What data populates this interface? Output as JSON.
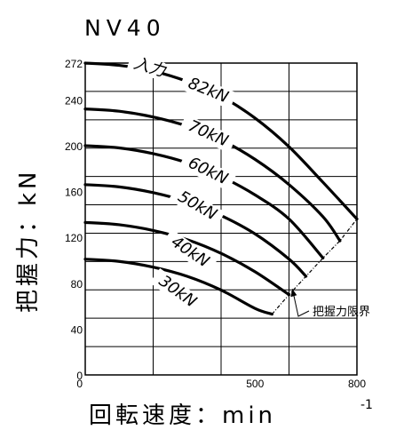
{
  "chart_data": {
    "type": "line",
    "title": "NV40",
    "xlabel": "回転速度：min",
    "xlabel_sup": "-1",
    "ylabel": "把握力：kN",
    "xlim": [
      0,
      800
    ],
    "ylim": [
      0,
      272
    ],
    "x_ticks": [
      {
        "label": "0",
        "value": 0
      },
      {
        "label": "500",
        "value": 500
      },
      {
        "label": "800",
        "value": 800
      }
    ],
    "y_ticks": [
      {
        "label": "0",
        "value": 0
      },
      {
        "label": "40",
        "value": 40
      },
      {
        "label": "80",
        "value": 80
      },
      {
        "label": "120",
        "value": 120
      },
      {
        "label": "160",
        "value": 160
      },
      {
        "label": "200",
        "value": 200
      },
      {
        "label": "240",
        "value": 240
      },
      {
        "label": "272",
        "value": 272
      }
    ],
    "grid": true,
    "input_prefix": "入力",
    "series": [
      {
        "name": "82kN",
        "x": [
          0,
          100,
          200,
          300,
          400,
          500,
          600,
          700,
          800
        ],
        "y": [
          272,
          270,
          265,
          256,
          243,
          224,
          199,
          168,
          136
        ]
      },
      {
        "name": "70kN",
        "x": [
          0,
          100,
          200,
          300,
          400,
          500,
          600,
          700,
          750
        ],
        "y": [
          232,
          230,
          225,
          217,
          205,
          188,
          166,
          138,
          117
        ]
      },
      {
        "name": "60kN",
        "x": [
          0,
          100,
          200,
          300,
          400,
          500,
          600,
          700
        ],
        "y": [
          200,
          198,
          193,
          185,
          173,
          157,
          136,
          102
        ]
      },
      {
        "name": "50kN",
        "x": [
          0,
          100,
          200,
          300,
          400,
          500,
          600,
          650
        ],
        "y": [
          166,
          164,
          159,
          151,
          139,
          123,
          101,
          86
        ]
      },
      {
        "name": "40kN",
        "x": [
          0,
          100,
          200,
          300,
          400,
          500,
          600
        ],
        "y": [
          133,
          131,
          126,
          118,
          106,
          90,
          70
        ]
      },
      {
        "name": "30kN",
        "x": [
          0,
          100,
          200,
          300,
          400,
          500,
          550
        ],
        "y": [
          101,
          99,
          94,
          86,
          74,
          58,
          53
        ]
      }
    ],
    "limit_line": {
      "name": "把握力限界",
      "x": [
        550,
        600,
        650,
        700,
        750,
        800
      ],
      "y": [
        53,
        70,
        86,
        102,
        117,
        136
      ]
    }
  }
}
